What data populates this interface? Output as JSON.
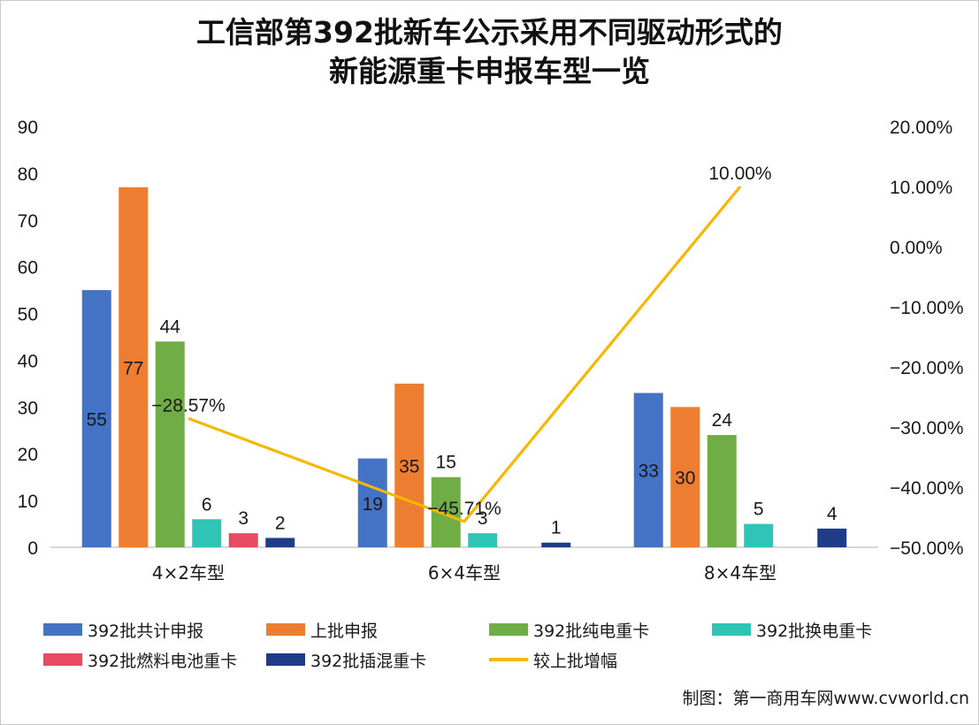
{
  "chart_data": {
    "type": "bar",
    "title_line1": "工信部第392批新车公示采用不同驱动形式的",
    "title_line2": "新能源重卡申报车型一览",
    "categories": [
      "4×2车型",
      "6×4车型",
      "8×4车型"
    ],
    "ylim": [
      0,
      90
    ],
    "y_ticks": [
      "0",
      "10",
      "20",
      "30",
      "40",
      "50",
      "60",
      "70",
      "80",
      "90"
    ],
    "y2lim": [
      -50,
      20
    ],
    "y2_ticks": [
      "-50.00%",
      "-40.00%",
      "-30.00%",
      "-20.00%",
      "-10.00%",
      "0.00%",
      "10.00%",
      "20.00%"
    ],
    "series": [
      {
        "name": "392批共计申报",
        "color": "#4472c4",
        "values": [
          55,
          19,
          33
        ]
      },
      {
        "name": "上批申报",
        "color": "#ed7d31",
        "values": [
          77,
          35,
          30
        ]
      },
      {
        "name": "392批纯电重卡",
        "color": "#70ad47",
        "values": [
          44,
          15,
          24
        ]
      },
      {
        "name": "392批换电重卡",
        "color": "#2ec4b6",
        "values": [
          6,
          3,
          5
        ]
      },
      {
        "name": "392批燃料电池重卡",
        "color": "#e84a5f",
        "values": [
          3,
          null,
          null
        ]
      },
      {
        "name": "392批插混重卡",
        "color": "#1f3c88",
        "values": [
          2,
          1,
          4
        ]
      }
    ],
    "line_series": {
      "name": "较上批增幅",
      "color": "#f5b800",
      "axis": "secondary",
      "values": [
        -28.57,
        -45.71,
        10.0
      ],
      "labels": [
        "-28.57%",
        "-45.71%",
        "10.00%"
      ]
    },
    "grid": false,
    "legend_position": "bottom"
  },
  "credit": "制图：第一商用车网www.cvworld.cn"
}
